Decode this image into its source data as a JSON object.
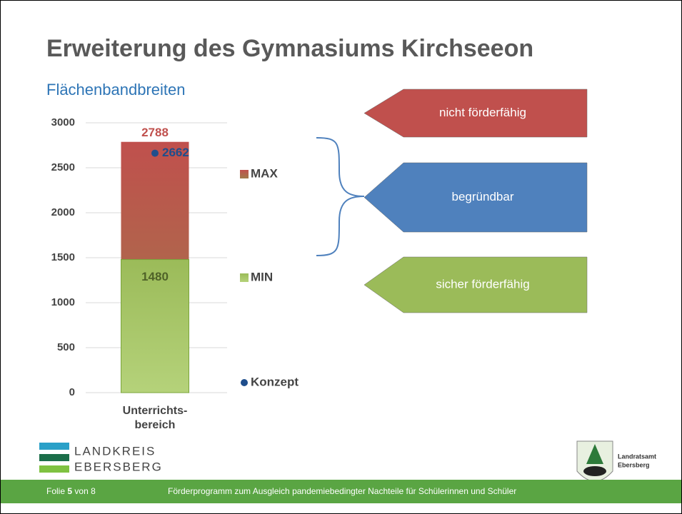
{
  "title": "Erweiterung des Gymnasiums Kirchseeon",
  "chart_data": {
    "type": "bar",
    "title": "Flächenbandbreiten",
    "categories": [
      "Unterrichts-bereich"
    ],
    "series": [
      {
        "name": "MAX",
        "color": "#c0504d",
        "values": [
          2788
        ]
      },
      {
        "name": "MIN",
        "color": "#9bbb59",
        "values": [
          1480
        ]
      },
      {
        "name": "Konzept",
        "type": "scatter",
        "color": "#1f4e8c",
        "values": [
          2662
        ]
      }
    ],
    "ylim": [
      0,
      3000
    ],
    "yticks": [
      0,
      500,
      1000,
      1500,
      2000,
      2500,
      3000
    ],
    "grid": true,
    "legend": "right"
  },
  "arrows": [
    {
      "label": "nicht förderfähig",
      "color": "#c0504d"
    },
    {
      "label": "begründbar",
      "color": "#4f81bd"
    },
    {
      "label": "sicher förderfähig",
      "color": "#9bbb59"
    }
  ],
  "logo_left": {
    "line1": "LANDKREIS",
    "line2": "EBERSBERG"
  },
  "logo_right": {
    "line1": "Landratsamt",
    "line2": "Ebersberg"
  },
  "footer": {
    "slide_label": "Folie",
    "slide_number": 5,
    "slide_of": "von",
    "slide_total": 8,
    "text": "Förderprogramm zum Ausgleich pandemiebedingter Nachteile für Schülerinnen und Schüler"
  }
}
